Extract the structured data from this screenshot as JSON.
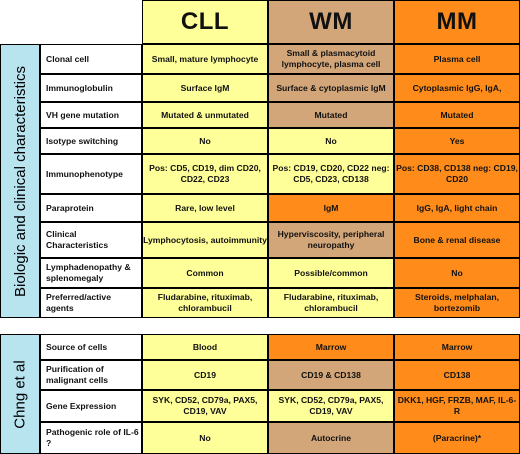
{
  "columns": {
    "cll": "CLL",
    "wm": "WM",
    "mm": "MM"
  },
  "sections": [
    {
      "title": "Biologic and clinical characteristics"
    },
    {
      "title": "Chng et al"
    }
  ],
  "rows": [
    {
      "label": "Clonal cell",
      "cll": "Small, mature lymphocyte",
      "wm": "Small & plasmacytoid lymphocyte, plasma cell",
      "mm": "Plasma cell"
    },
    {
      "label": "Immunoglobulin",
      "cll": "Surface IgM",
      "wm": "Surface & cytoplasmic IgM",
      "mm": "Cytoplasmic IgG, IgA,"
    },
    {
      "label": "VH gene mutation",
      "cll": "Mutated & unmutated",
      "wm": "Mutated",
      "mm": "Mutated"
    },
    {
      "label": "Isotype switching",
      "cll": "No",
      "wm": "No",
      "mm": "Yes"
    },
    {
      "label": "Immunophenotype",
      "cll": "Pos: CD5, CD19, dim CD20, CD22, CD23",
      "wm": "Pos: CD19, CD20, CD22 neg: CD5, CD23, CD138",
      "mm": "Pos: CD38, CD138 neg: CD19, CD20"
    },
    {
      "label": "Paraprotein",
      "cll": "Rare, low level",
      "wm": "IgM",
      "mm": "IgG, IgA, light chain"
    },
    {
      "label": "Clinical Characteristics",
      "cll": "Lymphocytosis, autoimmunity",
      "wm": "Hyperviscosity, peripheral neuropathy",
      "mm": "Bone & renal disease"
    },
    {
      "label": "Lymphadenopathy & splenomegaly",
      "cll": "Common",
      "wm": "Possible/common",
      "mm": "No"
    },
    {
      "label": "Preferred/active agents",
      "cll": "Fludarabine, rituximab, chlorambucil",
      "wm": "Fludarabine, rituximab, chlorambucil",
      "mm": "Steroids, melphalan, bortezomib"
    },
    {
      "label": "Source of cells",
      "cll": "Blood",
      "wm": "Marrow",
      "mm": "Marrow"
    },
    {
      "label": "Purification of malignant cells",
      "cll": "CD19",
      "wm": "CD19 & CD138",
      "mm": "CD138"
    },
    {
      "label": "Gene Expression",
      "cll": "SYK, CD52, CD79a, PAX5, CD19, VAV",
      "wm": "SYK, CD52, CD79a, PAX5, CD19, VAV",
      "mm": "DKK1, HGF, FRZB, MAF, IL-6-R"
    },
    {
      "label": "Pathogenic role of IL-6 ?",
      "cll": "No",
      "wm": "Autocrine",
      "mm": "(Paracrine)*"
    }
  ]
}
